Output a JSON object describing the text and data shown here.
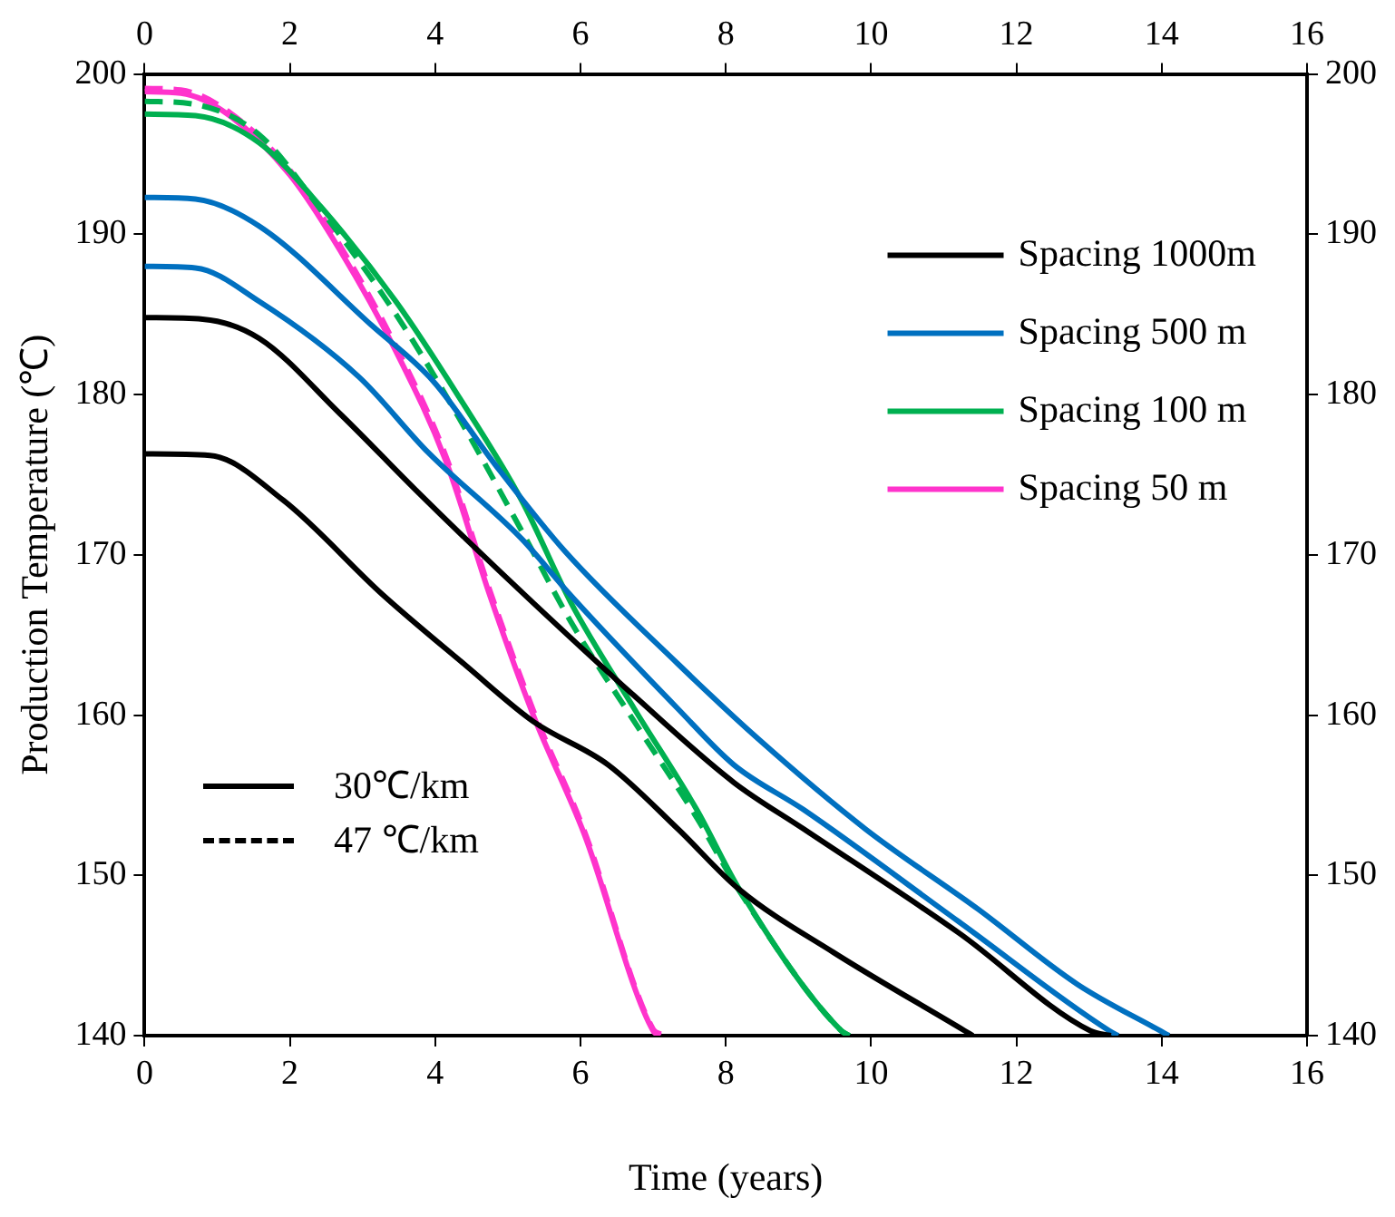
{
  "chart_data": {
    "type": "line",
    "xlabel": "Time (years)",
    "ylabel": "Production Temperature (℃)",
    "xlim": [
      0,
      16
    ],
    "xticks": [
      0,
      2,
      4,
      6,
      8,
      10,
      12,
      14,
      16
    ],
    "x2lim": [
      0,
      16
    ],
    "x2ticks": [
      0,
      2,
      4,
      6,
      8,
      10,
      12,
      14,
      16
    ],
    "ylim": [
      140,
      200
    ],
    "yticks": [
      140,
      150,
      160,
      170,
      180,
      190,
      200
    ],
    "y2lim": [
      140,
      200
    ],
    "y2ticks": [
      140,
      150,
      160,
      170,
      180,
      190,
      200
    ],
    "grid": false,
    "legend": "top right",
    "marker": "none",
    "annotations": [
      "30℃/km",
      "47 ℃/km"
    ],
    "series": [
      {
        "name": "Spacing 1000m",
        "color": "#000000",
        "line_style": "solid",
        "x": [
          0,
          0.8,
          1.58,
          2.69,
          3.72,
          4.42,
          5.35,
          6.74,
          8.11,
          9.07,
          11.21,
          13.02,
          13.3
        ],
        "values": [
          184.8,
          184.7,
          183.5,
          178.8,
          174.1,
          171,
          167,
          161.2,
          155.8,
          152.9,
          146.4,
          140.3,
          140
        ]
      },
      {
        "color": "#000000",
        "line_style": "solid",
        "x": [
          0,
          0.9,
          1.91,
          3.28,
          4.42,
          5.35,
          6.38,
          7.34,
          8.19,
          9.48,
          11.29,
          11.4
        ],
        "values": [
          176.3,
          176.2,
          173.4,
          167.5,
          163.1,
          159.6,
          156.9,
          152.9,
          149.1,
          145.2,
          140.3,
          140
        ]
      },
      {
        "name": "Spacing 500 m",
        "color": "#0070c0",
        "line_style": "solid",
        "x": [
          0,
          0.7,
          1.58,
          3.13,
          3.98,
          4.83,
          5.79,
          7.34,
          8.45,
          9.92,
          11.47,
          12.84,
          13.98,
          14.1
        ],
        "values": [
          192.3,
          192.2,
          190.5,
          184.3,
          180.8,
          175.6,
          170.2,
          163.2,
          158.5,
          152.9,
          147.9,
          143.2,
          140.3,
          140
        ]
      },
      {
        "color": "#0070c0",
        "line_style": "solid",
        "x": [
          0,
          0.7,
          1.58,
          2.95,
          3.9,
          5.19,
          5.86,
          7.34,
          8.11,
          9.07,
          11.21,
          13.28,
          13.4
        ],
        "values": [
          188,
          187.9,
          185.8,
          181.1,
          176.4,
          171,
          167.5,
          160.4,
          156.9,
          154.1,
          147.1,
          140.3,
          140
        ]
      },
      {
        "name": "Spacing 100 m",
        "color": "#00b050",
        "line_style": "solid",
        "x": [
          0,
          0.7,
          1.58,
          2.43,
          3.46,
          4.32,
          5.19,
          5.87,
          6.74,
          7.6,
          8.19,
          9.59,
          9.7
        ],
        "values": [
          197.5,
          197.4,
          195.7,
          191.7,
          185.8,
          179.9,
          173.4,
          167,
          160.4,
          154.1,
          149.1,
          140.3,
          140
        ]
      },
      {
        "color": "#00b050",
        "line_style": "dashed",
        "x": [
          0,
          0.7,
          1.58,
          2.43,
          3.46,
          4.32,
          5.19,
          5.87,
          6.74,
          7.6,
          8.19,
          9.59,
          9.7
        ],
        "values": [
          198.3,
          198.1,
          196.2,
          191.5,
          185,
          178.6,
          171.5,
          165.8,
          159.6,
          153.6,
          149,
          140.3,
          140
        ]
      },
      {
        "name": "Spacing 50 m",
        "color": "#ff33cc",
        "line_style": "solid",
        "x": [
          0,
          0.5,
          1.14,
          2,
          2.69,
          3.46,
          4.16,
          4.75,
          5.35,
          6.05,
          7,
          7.1
        ],
        "values": [
          198.9,
          198.8,
          197.5,
          193.7,
          189,
          182.7,
          175.7,
          167.5,
          160,
          152.6,
          140.3,
          140
        ]
      },
      {
        "color": "#ff33cc",
        "line_style": "dashed",
        "x": [
          0,
          0.5,
          1.14,
          2,
          2.69,
          3.46,
          4.16,
          4.75,
          5.35,
          6.05,
          7,
          7.1
        ],
        "values": [
          199.1,
          199,
          197.7,
          194,
          189.3,
          183,
          176,
          167.8,
          160.3,
          152.8,
          140.4,
          140.1
        ]
      }
    ]
  }
}
